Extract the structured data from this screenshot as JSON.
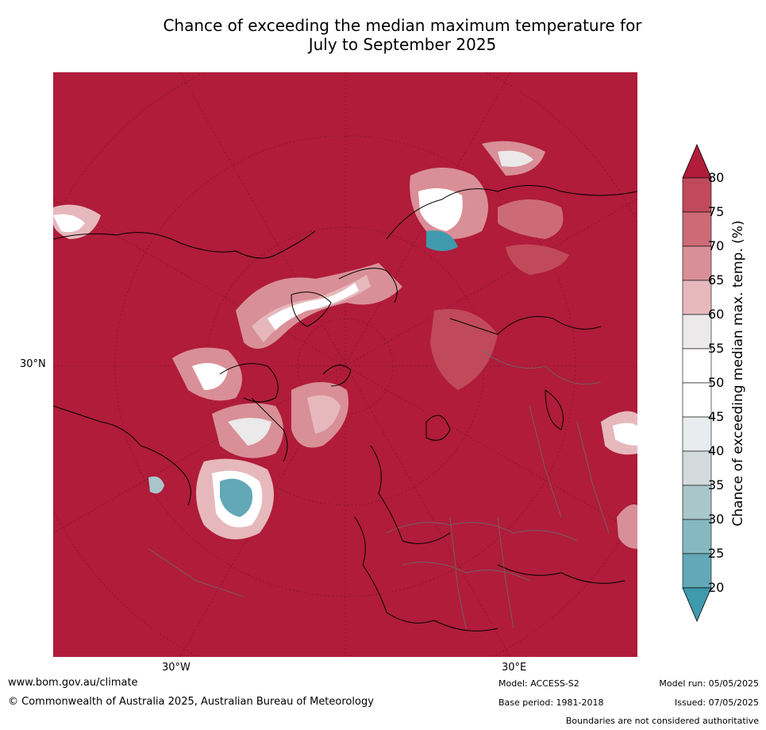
{
  "title": {
    "line1": "Chance of exceeding the median maximum temperature for",
    "line2": "July to September 2025"
  },
  "map": {
    "lat_label": "30°N",
    "lon_labels": [
      "30°W",
      "30°E"
    ],
    "background_color": "#b01c3a"
  },
  "colorbar": {
    "label": "Chance of exceeding median max. temp. (%)",
    "ticks": [
      "80",
      "75",
      "70",
      "65",
      "60",
      "55",
      "50",
      "45",
      "40",
      "35",
      "30",
      "25",
      "20"
    ],
    "colors": [
      "#b01c3a",
      "#c04a5a",
      "#cc6b76",
      "#d98f97",
      "#e6b8bc",
      "#ebe9e9",
      "#ffffff",
      "#ffffff",
      "#e8ecee",
      "#d2dadc",
      "#a9c6ca",
      "#86b8c2",
      "#63a8b6",
      "#3f9aad"
    ]
  },
  "footer": {
    "website": "www.bom.gov.au/climate",
    "copyright": "© Commonwealth of Australia 2025, Australian Bureau of Meteorology",
    "model": "Model: ACCESS-S2",
    "base_period": "Base period: 1981-2018",
    "model_run": "Model run: 05/05/2025",
    "issued": "Issued: 07/05/2025",
    "disclaimer": "Boundaries are not considered authoritative"
  }
}
